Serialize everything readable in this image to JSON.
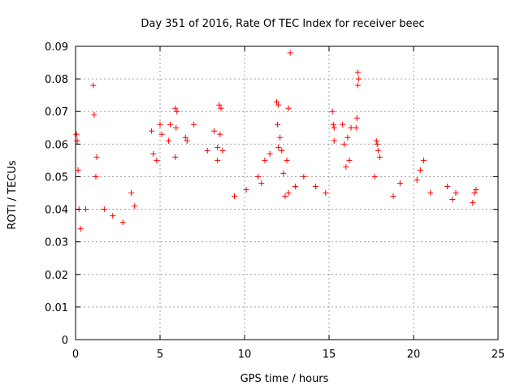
{
  "chart_data": {
    "type": "scatter",
    "title": "Day 351 of 2016, Rate Of TEC Index for receiver beec",
    "xlabel": "GPS time / hours",
    "ylabel": "ROTI / TECUs",
    "xlim": [
      0,
      25
    ],
    "ylim": [
      0,
      0.09
    ],
    "x_ticks": [
      {
        "value": 0,
        "label": "0"
      },
      {
        "value": 5,
        "label": "5"
      },
      {
        "value": 10,
        "label": "10"
      },
      {
        "value": 15,
        "label": "15"
      },
      {
        "value": 20,
        "label": "20"
      },
      {
        "value": 25,
        "label": "25"
      }
    ],
    "y_ticks": [
      {
        "value": 0,
        "label": "0"
      },
      {
        "value": 0.01,
        "label": "0.01"
      },
      {
        "value": 0.02,
        "label": "0.02"
      },
      {
        "value": 0.03,
        "label": "0.03"
      },
      {
        "value": 0.04,
        "label": "0.04"
      },
      {
        "value": 0.05,
        "label": "0.05"
      },
      {
        "value": 0.06,
        "label": "0.06"
      },
      {
        "value": 0.07,
        "label": "0.07"
      },
      {
        "value": 0.08,
        "label": "0.08"
      },
      {
        "value": 0.09,
        "label": "0.09"
      }
    ],
    "grid": true,
    "marker": "+",
    "color": "#ff0000",
    "series": [
      {
        "name": "ROTI",
        "points": [
          [
            0.05,
            0.063
          ],
          [
            0.1,
            0.061
          ],
          [
            0.15,
            0.052
          ],
          [
            0.2,
            0.04
          ],
          [
            0.3,
            0.034
          ],
          [
            1.05,
            0.078
          ],
          [
            1.1,
            0.069
          ],
          [
            1.25,
            0.056
          ],
          [
            1.2,
            0.05
          ],
          [
            3.3,
            0.045
          ],
          [
            3.5,
            0.041
          ],
          [
            4.5,
            0.064
          ],
          [
            4.6,
            0.057
          ],
          [
            4.8,
            0.055
          ],
          [
            5.0,
            0.066
          ],
          [
            5.1,
            0.063
          ],
          [
            5.5,
            0.061
          ],
          [
            5.6,
            0.066
          ],
          [
            5.9,
            0.071
          ],
          [
            6.0,
            0.07
          ],
          [
            5.95,
            0.065
          ],
          [
            5.9,
            0.056
          ],
          [
            6.5,
            0.062
          ],
          [
            6.6,
            0.061
          ],
          [
            7.0,
            0.066
          ],
          [
            7.8,
            0.058
          ],
          [
            8.2,
            0.064
          ],
          [
            8.4,
            0.059
          ],
          [
            8.5,
            0.072
          ],
          [
            8.6,
            0.071
          ],
          [
            8.55,
            0.063
          ],
          [
            8.7,
            0.058
          ],
          [
            8.4,
            0.055
          ],
          [
            11.2,
            0.055
          ],
          [
            11.5,
            0.057
          ],
          [
            11.9,
            0.073
          ],
          [
            12.0,
            0.072
          ],
          [
            11.95,
            0.066
          ],
          [
            12.1,
            0.062
          ],
          [
            12.0,
            0.059
          ],
          [
            12.2,
            0.058
          ],
          [
            12.6,
            0.071
          ],
          [
            12.5,
            0.055
          ],
          [
            12.4,
            0.044
          ],
          [
            12.6,
            0.045
          ],
          [
            12.3,
            0.051
          ],
          [
            12.7,
            0.088
          ],
          [
            15.2,
            0.07
          ],
          [
            15.25,
            0.066
          ],
          [
            15.3,
            0.065
          ],
          [
            15.3,
            0.061
          ],
          [
            15.8,
            0.066
          ],
          [
            16.3,
            0.065
          ],
          [
            16.6,
            0.065
          ],
          [
            16.7,
            0.082
          ],
          [
            16.75,
            0.08
          ],
          [
            16.7,
            0.078
          ],
          [
            16.65,
            0.068
          ],
          [
            16.1,
            0.062
          ],
          [
            15.9,
            0.06
          ],
          [
            16.2,
            0.055
          ],
          [
            16.0,
            0.053
          ],
          [
            17.8,
            0.061
          ],
          [
            17.9,
            0.058
          ],
          [
            17.85,
            0.06
          ],
          [
            18.0,
            0.056
          ],
          [
            17.7,
            0.05
          ],
          [
            20.4,
            0.052
          ],
          [
            20.6,
            0.055
          ],
          [
            20.2,
            0.049
          ],
          [
            21.0,
            0.045
          ],
          [
            22.0,
            0.047
          ],
          [
            22.5,
            0.045
          ],
          [
            22.3,
            0.043
          ],
          [
            23.6,
            0.045
          ],
          [
            23.7,
            0.046
          ],
          [
            23.5,
            0.042
          ],
          [
            1.7,
            0.04
          ],
          [
            0.6,
            0.04
          ],
          [
            2.2,
            0.038
          ],
          [
            2.8,
            0.036
          ],
          [
            10.8,
            0.05
          ],
          [
            11.0,
            0.048
          ],
          [
            13.5,
            0.05
          ],
          [
            14.2,
            0.047
          ],
          [
            19.2,
            0.048
          ],
          [
            9.4,
            0.044
          ],
          [
            10.1,
            0.046
          ],
          [
            13.0,
            0.047
          ],
          [
            14.8,
            0.045
          ],
          [
            18.8,
            0.044
          ]
        ]
      }
    ]
  }
}
